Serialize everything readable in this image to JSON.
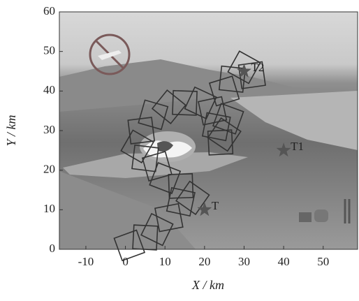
{
  "chart_data": {
    "type": "scatter",
    "x_label": "X / km",
    "y_label": "Y / km",
    "xlim": [
      -16.7,
      58.7
    ],
    "ylim": [
      0,
      60
    ],
    "xticks": [
      -10,
      0,
      10,
      20,
      30,
      40,
      50
    ],
    "yticks": [
      0,
      10,
      20,
      30,
      40,
      50,
      60
    ],
    "series": [
      {
        "name": "T2",
        "color": "#555555",
        "x": [
          30
        ],
        "values": [
          45
        ]
      },
      {
        "name": "T1",
        "color": "#555555",
        "x": [
          40
        ],
        "values": [
          25
        ]
      },
      {
        "name": "T",
        "color": "#555555",
        "x": [
          20
        ],
        "values": [
          10
        ]
      }
    ],
    "path": {
      "color": "#333333",
      "size": 6,
      "x": [
        1,
        5,
        8,
        11,
        14,
        17,
        14,
        10,
        8,
        5,
        3,
        4,
        7,
        11,
        15,
        19,
        22,
        23,
        25,
        24,
        26,
        25,
        27,
        30,
        32
      ],
      "values": [
        1,
        3,
        5,
        8,
        12,
        13,
        16,
        18,
        21,
        23,
        26,
        30,
        34,
        36,
        37,
        37,
        35,
        31,
        29,
        27,
        33,
        40,
        43,
        46,
        44
      ]
    }
  }
}
